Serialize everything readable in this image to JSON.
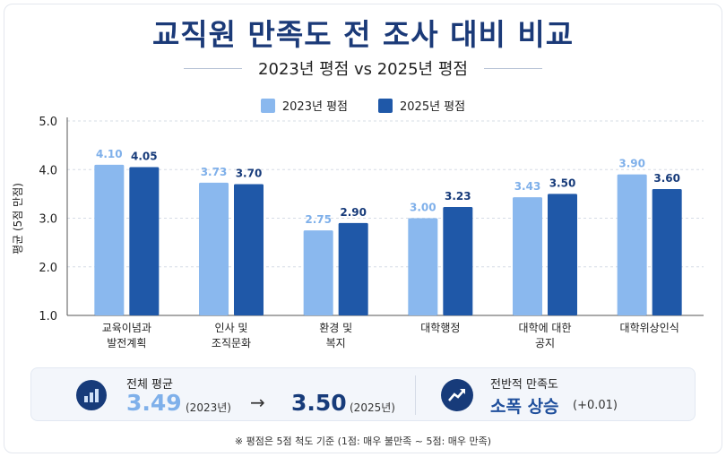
{
  "title": "교직원 만족도 전 조사 대비 비교",
  "subtitle": "2023년 평점 vs 2025년 평점",
  "colors": {
    "s2023": "#8ab8ee",
    "s2025": "#1f58a8",
    "title": "#1b3a78",
    "label2023": "#7fb0ea",
    "label2025": "#173b7a"
  },
  "chart_data": {
    "type": "bar",
    "title": "교직원 만족도 전 조사 대비 비교",
    "ylabel": "평균 (5점 만점)",
    "ylim": [
      1.0,
      5.0
    ],
    "yticks": [
      "1.0",
      "2.0",
      "3.0",
      "4.0",
      "5.0"
    ],
    "grid": true,
    "legend_position": "top-center",
    "categories": [
      [
        "교육이념과",
        "발전계획"
      ],
      [
        "인사 및",
        "조직문화"
      ],
      [
        "환경 및",
        "복지"
      ],
      [
        "대학행정"
      ],
      [
        "대학에 대한",
        "공지"
      ],
      [
        "대학위상인식"
      ]
    ],
    "series": [
      {
        "name": "2023년 평점",
        "values": [
          4.1,
          3.73,
          2.75,
          3.0,
          3.43,
          3.9
        ],
        "labels": [
          "4.10",
          "3.73",
          "2.75",
          "3.00",
          "3.43",
          "3.90"
        ]
      },
      {
        "name": "2025년 평점",
        "values": [
          4.05,
          3.7,
          2.9,
          3.23,
          3.5,
          3.6
        ],
        "labels": [
          "4.05",
          "3.70",
          "2.90",
          "3.23",
          "3.50",
          "3.60"
        ]
      }
    ]
  },
  "summary": {
    "avg_label": "전체 평균",
    "avg_2023": "3.49",
    "year_2023": "(2023년)",
    "arrow": "→",
    "avg_2025": "3.50",
    "year_2025": "(2025년)",
    "overall_label": "전반적 만족도",
    "overall_value": "소폭 상승",
    "overall_delta": "(+0.01)",
    "icons": [
      "bar-chart-icon",
      "trend-up-icon"
    ]
  },
  "note": "※ 평점은 5점 척도 기준 (1점: 매우 불만족 ~ 5점: 매우 만족)"
}
